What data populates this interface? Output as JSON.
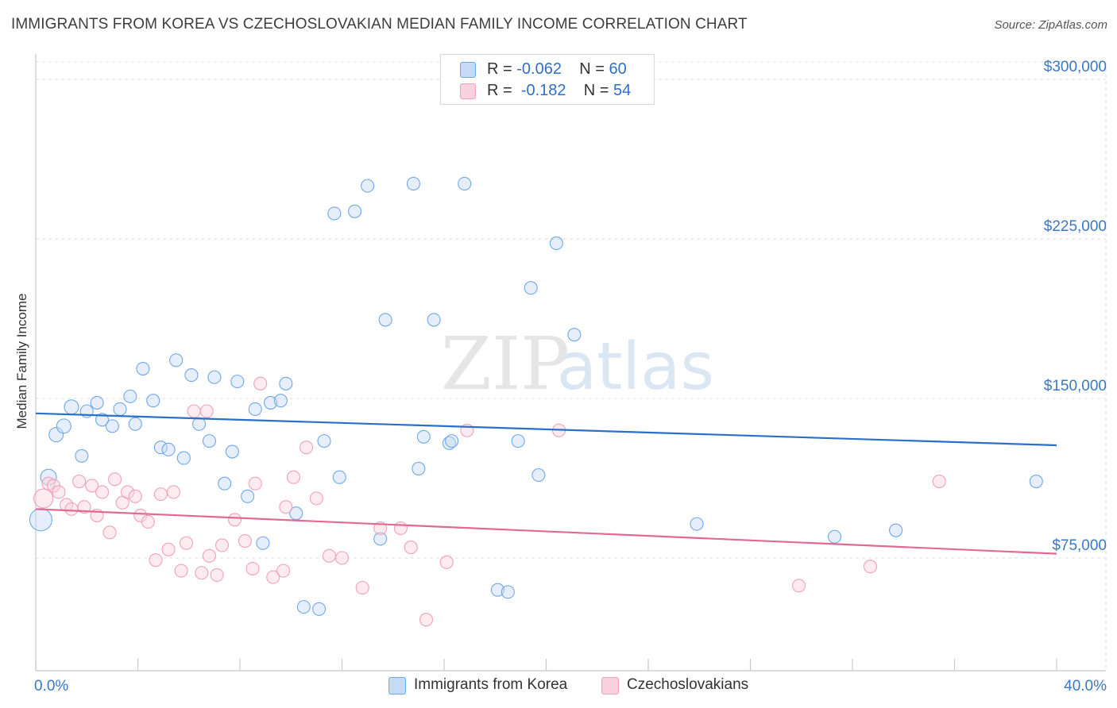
{
  "title": "IMMIGRANTS FROM KOREA VS CZECHOSLOVAKIAN MEDIAN FAMILY INCOME CORRELATION CHART",
  "source": "Source: ZipAtlas.com",
  "watermark": {
    "zip": "ZIP",
    "atlas": "atlas"
  },
  "legend": {
    "korea": {
      "r_label": "R =",
      "r_value": "-0.062",
      "n_label": "N =",
      "n_value": "60",
      "color": "#6fa8e8"
    },
    "czech": {
      "r_label": "R =",
      "r_value": "-0.182",
      "n_label": "N =",
      "n_value": "54",
      "color": "#f0a0bb"
    }
  },
  "bottom_legend": {
    "korea": "Immigrants from Korea",
    "czech": "Czechoslovakians"
  },
  "chart_data": {
    "type": "scatter",
    "xlabel": "",
    "ylabel": "Median Family Income",
    "xlim": [
      0,
      40
    ],
    "ylim": [
      22000,
      312000
    ],
    "x_tick_labels": [
      "0.0%",
      "40.0%"
    ],
    "y_tick_values": [
      75000,
      150000,
      225000,
      300000
    ],
    "y_tick_labels": [
      "$75,000",
      "$150,000",
      "$225,000",
      "$300,000"
    ],
    "grid": true,
    "series": [
      {
        "name": "Immigrants from Korea",
        "color": "#6fa8e8",
        "line_color": "#2a6fc8",
        "trend": {
          "x": [
            0,
            40
          ],
          "y": [
            143000,
            128000
          ]
        },
        "points": [
          [
            0.2,
            93000,
            14
          ],
          [
            0.5,
            113000,
            10
          ],
          [
            0.8,
            133000,
            9
          ],
          [
            1.1,
            137000,
            9
          ],
          [
            1.4,
            146000,
            9
          ],
          [
            1.8,
            123000,
            8
          ],
          [
            2.0,
            144000,
            8
          ],
          [
            2.4,
            148000,
            8
          ],
          [
            2.6,
            140000,
            8
          ],
          [
            3.0,
            137000,
            8
          ],
          [
            3.3,
            145000,
            8
          ],
          [
            3.7,
            151000,
            8
          ],
          [
            3.9,
            138000,
            8
          ],
          [
            4.2,
            164000,
            8
          ],
          [
            4.6,
            149000,
            8
          ],
          [
            4.9,
            127000,
            8
          ],
          [
            5.2,
            126000,
            8
          ],
          [
            5.5,
            168000,
            8
          ],
          [
            5.8,
            122000,
            8
          ],
          [
            6.1,
            161000,
            8
          ],
          [
            6.4,
            138000,
            8
          ],
          [
            6.8,
            130000,
            8
          ],
          [
            7.0,
            160000,
            8
          ],
          [
            7.4,
            110000,
            8
          ],
          [
            7.7,
            125000,
            8
          ],
          [
            7.9,
            158000,
            8
          ],
          [
            8.3,
            104000,
            8
          ],
          [
            8.6,
            145000,
            8
          ],
          [
            8.9,
            82000,
            8
          ],
          [
            9.2,
            148000,
            8
          ],
          [
            9.6,
            149000,
            8
          ],
          [
            9.8,
            157000,
            8
          ],
          [
            10.2,
            96000,
            8
          ],
          [
            10.5,
            52000,
            8
          ],
          [
            11.1,
            51000,
            8
          ],
          [
            11.3,
            130000,
            8
          ],
          [
            11.7,
            237000,
            8
          ],
          [
            11.9,
            113000,
            8
          ],
          [
            12.5,
            238000,
            8
          ],
          [
            13.0,
            250000,
            8
          ],
          [
            13.5,
            84000,
            8
          ],
          [
            13.7,
            187000,
            8
          ],
          [
            14.8,
            251000,
            8
          ],
          [
            15.0,
            117000,
            8
          ],
          [
            15.2,
            132000,
            8
          ],
          [
            15.6,
            187000,
            8
          ],
          [
            16.2,
            129000,
            8
          ],
          [
            16.3,
            130000,
            8
          ],
          [
            16.8,
            251000,
            8
          ],
          [
            18.1,
            60000,
            8
          ],
          [
            18.5,
            59000,
            8
          ],
          [
            18.9,
            130000,
            8
          ],
          [
            19.4,
            202000,
            8
          ],
          [
            19.7,
            114000,
            8
          ],
          [
            20.4,
            223000,
            8
          ],
          [
            21.1,
            180000,
            8
          ],
          [
            25.9,
            91000,
            8
          ],
          [
            31.3,
            85000,
            8
          ],
          [
            33.7,
            88000,
            8
          ],
          [
            39.2,
            111000,
            8
          ]
        ]
      },
      {
        "name": "Czechoslovakians",
        "color": "#f0a0bb",
        "line_color": "#e06a93",
        "trend": {
          "x": [
            0,
            40
          ],
          "y": [
            98000,
            77000
          ]
        },
        "points": [
          [
            0.3,
            103000,
            12
          ],
          [
            0.5,
            110000,
            8
          ],
          [
            0.7,
            109000,
            8
          ],
          [
            0.9,
            106000,
            8
          ],
          [
            1.2,
            100000,
            8
          ],
          [
            1.4,
            98000,
            8
          ],
          [
            1.7,
            111000,
            8
          ],
          [
            1.9,
            99000,
            8
          ],
          [
            2.2,
            109000,
            8
          ],
          [
            2.4,
            95000,
            8
          ],
          [
            2.6,
            106000,
            8
          ],
          [
            2.9,
            87000,
            8
          ],
          [
            3.1,
            112000,
            8
          ],
          [
            3.4,
            101000,
            8
          ],
          [
            3.6,
            106000,
            8
          ],
          [
            3.9,
            104000,
            8
          ],
          [
            4.1,
            95000,
            8
          ],
          [
            4.4,
            92000,
            8
          ],
          [
            4.7,
            74000,
            8
          ],
          [
            4.9,
            105000,
            8
          ],
          [
            5.2,
            79000,
            8
          ],
          [
            5.4,
            106000,
            8
          ],
          [
            5.7,
            69000,
            8
          ],
          [
            5.9,
            82000,
            8
          ],
          [
            6.2,
            144000,
            8
          ],
          [
            6.5,
            68000,
            8
          ],
          [
            6.7,
            144000,
            8
          ],
          [
            6.8,
            76000,
            8
          ],
          [
            7.1,
            67000,
            8
          ],
          [
            7.3,
            81000,
            8
          ],
          [
            7.8,
            93000,
            8
          ],
          [
            8.2,
            83000,
            8
          ],
          [
            8.5,
            70000,
            8
          ],
          [
            8.6,
            110000,
            8
          ],
          [
            8.8,
            157000,
            8
          ],
          [
            9.3,
            66000,
            8
          ],
          [
            9.7,
            69000,
            8
          ],
          [
            9.8,
            99000,
            8
          ],
          [
            10.1,
            113000,
            8
          ],
          [
            10.6,
            127000,
            8
          ],
          [
            11.0,
            103000,
            8
          ],
          [
            11.5,
            76000,
            8
          ],
          [
            12.0,
            75000,
            8
          ],
          [
            12.8,
            61000,
            8
          ],
          [
            13.5,
            89000,
            8
          ],
          [
            14.3,
            89000,
            8
          ],
          [
            14.7,
            80000,
            8
          ],
          [
            15.3,
            46000,
            8
          ],
          [
            16.1,
            73000,
            8
          ],
          [
            16.9,
            135000,
            8
          ],
          [
            20.5,
            135000,
            8
          ],
          [
            29.9,
            62000,
            8
          ],
          [
            32.7,
            71000,
            8
          ],
          [
            35.4,
            111000,
            8
          ]
        ]
      }
    ]
  }
}
